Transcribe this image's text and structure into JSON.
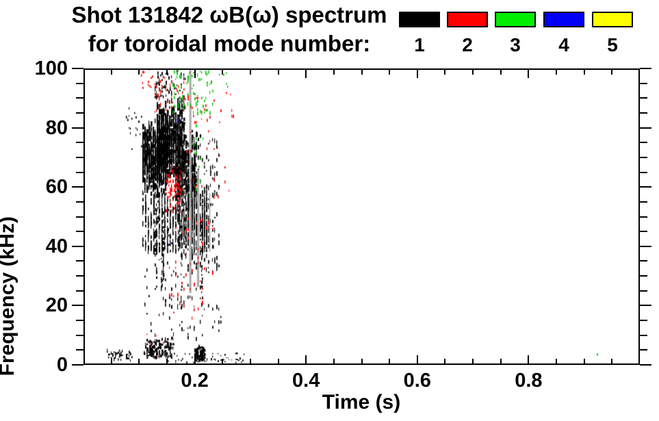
{
  "title": {
    "line1": "Shot 131842 ωB(ω) spectrum",
    "line2": "for toroidal mode number:"
  },
  "legend": {
    "items": [
      {
        "label": "1",
        "color": "#000000"
      },
      {
        "label": "2",
        "color": "#ff0000"
      },
      {
        "label": "3",
        "color": "#00ee00"
      },
      {
        "label": "4",
        "color": "#0000f5"
      },
      {
        "label": "5",
        "color": "#ffff00"
      }
    ]
  },
  "chart_data": {
    "type": "scatter",
    "title": "Shot 131842 ωB(ω) spectrum for toroidal mode number: 1 2 3 4 5",
    "xlabel": "Time (s)",
    "ylabel": "Frequency (kHz)",
    "xlim": [
      0,
      1.0
    ],
    "ylim": [
      0,
      100
    ],
    "x_major_ticks": [
      0.2,
      0.4,
      0.6,
      0.8
    ],
    "x_tick_labels": [
      "0.2",
      "0.4",
      "0.6",
      "0.8"
    ],
    "x_minor_step": 0.05,
    "y_major_ticks": [
      0,
      20,
      40,
      60,
      80,
      100
    ],
    "y_tick_labels": [
      "0",
      "20",
      "40",
      "60",
      "80",
      "100"
    ],
    "y_minor_step": 5,
    "grid": false,
    "legend_position": "top-right-above-plot",
    "series": [
      {
        "mode": 1,
        "label": "1",
        "color": "#000000",
        "clusters": [
          {
            "n": 620,
            "t": [
              0.102,
              0.148
            ],
            "f": [
              56,
              84
            ],
            "prof": "blob",
            "w": [
              1,
              3
            ],
            "h": [
              3,
              9
            ],
            "q": 3
          },
          {
            "n": 780,
            "t": [
              0.128,
              0.178
            ],
            "f": [
              62,
              91
            ],
            "prof": "blob",
            "w": [
              1,
              3
            ],
            "h": [
              3,
              9
            ],
            "q": 3
          },
          {
            "n": 460,
            "t": [
              0.162,
              0.2
            ],
            "f": [
              50,
              80
            ],
            "prof": "blob",
            "w": [
              1,
              3
            ],
            "h": [
              3,
              8
            ],
            "q": 3
          },
          {
            "n": 420,
            "t": [
              0.168,
              0.222
            ],
            "f": [
              33,
              62
            ],
            "prof": "blob",
            "w": [
              1,
              2
            ],
            "h": [
              3,
              10
            ],
            "q": 3
          },
          {
            "n": 260,
            "t": [
              0.104,
              0.168
            ],
            "f": [
              38,
              58
            ],
            "prof": "uniform",
            "w": [
              1,
              2
            ],
            "h": [
              3,
              10
            ],
            "q": 4
          },
          {
            "n": 110,
            "t": [
              0.108,
              0.248
            ],
            "f": [
              8,
              36
            ],
            "prof": "uniform",
            "w": [
              1,
              2
            ],
            "h": [
              2,
              6
            ],
            "q": 3
          },
          {
            "n": 70,
            "t": [
              0.122,
              0.182
            ],
            "f": [
              90,
              100
            ],
            "prof": "uniform",
            "w": [
              1,
              2
            ],
            "h": [
              2,
              5
            ],
            "q": 2
          },
          {
            "n": 20,
            "t": [
              0.072,
              0.102
            ],
            "f": [
              70,
              88
            ],
            "prof": "uniform",
            "w": [
              1,
              2
            ],
            "h": [
              2,
              4
            ],
            "q": 2
          },
          {
            "n": 110,
            "t": [
              0.198,
              0.242
            ],
            "f": [
              30,
              78
            ],
            "prof": "uniform",
            "w": [
              1,
              2
            ],
            "h": [
              2,
              7
            ],
            "q": 3
          },
          {
            "type": "vstreaks",
            "n": 16,
            "t": [
              0.107,
              0.232
            ],
            "ftop": [
              44,
              66
            ],
            "flen": [
              8,
              30
            ]
          },
          {
            "n": 55,
            "t": [
              0.038,
              0.085
            ],
            "f": [
              0.5,
              5
            ],
            "prof": "blob",
            "w": [
              1,
              2
            ],
            "h": [
              2,
              4
            ],
            "q": 2
          },
          {
            "n": 150,
            "t": [
              0.106,
              0.158
            ],
            "f": [
              0.5,
              9
            ],
            "prof": "blob",
            "w": [
              1,
              3
            ],
            "h": [
              2,
              5
            ],
            "q": 2
          },
          {
            "n": 55,
            "t": [
              0.16,
              0.29
            ],
            "f": [
              0.3,
              3.5
            ],
            "prof": "uniform",
            "w": [
              1,
              2
            ],
            "h": [
              1,
              3
            ],
            "q": 2
          },
          {
            "n": 90,
            "t": [
              0.198,
              0.215
            ],
            "f": [
              0.5,
              6
            ],
            "prof": "blob",
            "w": [
              1,
              3
            ],
            "h": [
              2,
              5
            ],
            "q": 2
          }
        ]
      },
      {
        "mode": 2,
        "label": "2",
        "color": "#ff0000",
        "clusters": [
          {
            "n": 70,
            "t": [
              0.144,
              0.174
            ],
            "f": [
              50,
              68
            ],
            "prof": "blob",
            "w": [
              1,
              2
            ],
            "h": [
              2,
              6
            ],
            "q": 2
          },
          {
            "n": 45,
            "t": [
              0.15,
              0.232
            ],
            "f": [
              15,
              52
            ],
            "prof": "uniform",
            "w": [
              1,
              2
            ],
            "h": [
              2,
              6
            ],
            "q": 3
          },
          {
            "n": 35,
            "t": [
              0.124,
              0.182
            ],
            "f": [
              84,
              98
            ],
            "prof": "uniform",
            "w": [
              1,
              2
            ],
            "h": [
              2,
              5
            ],
            "q": 2
          },
          {
            "n": 12,
            "t": [
              0.1,
              0.124
            ],
            "f": [
              92,
              100
            ],
            "prof": "uniform",
            "w": [
              1,
              2
            ],
            "h": [
              2,
              4
            ],
            "q": 2
          },
          {
            "n": 22,
            "t": [
              0.215,
              0.268
            ],
            "f": [
              55,
              95
            ],
            "prof": "uniform",
            "w": [
              1,
              2
            ],
            "h": [
              2,
              5
            ],
            "q": 2
          },
          {
            "n": 25,
            "t": [
              0.178,
              0.215
            ],
            "f": [
              60,
              92
            ],
            "prof": "uniform",
            "w": [
              1,
              2
            ],
            "h": [
              2,
              5
            ],
            "q": 2
          },
          {
            "n": 6,
            "t": [
              0.108,
              0.148
            ],
            "f": [
              2,
              10
            ],
            "prof": "uniform",
            "w": [
              1,
              2
            ],
            "h": [
              1,
              3
            ],
            "q": 2
          }
        ]
      },
      {
        "mode": 3,
        "label": "3",
        "color": "#00c000",
        "clusters": [
          {
            "n": 80,
            "t": [
              0.158,
              0.23
            ],
            "f": [
              85,
              100
            ],
            "prof": "uniform",
            "w": [
              1,
              2
            ],
            "h": [
              2,
              6
            ],
            "q": 2
          },
          {
            "n": 14,
            "t": [
              0.185,
              0.215
            ],
            "f": [
              55,
              82
            ],
            "prof": "uniform",
            "w": [
              1,
              2
            ],
            "h": [
              2,
              5
            ],
            "q": 2
          },
          {
            "n": 5,
            "t": [
              0.24,
              0.262
            ],
            "f": [
              92,
              100
            ],
            "prof": "uniform",
            "w": [
              1,
              2
            ],
            "h": [
              2,
              4
            ],
            "q": 2
          },
          {
            "n": 1,
            "t": [
              0.922,
              0.926
            ],
            "f": [
              1.8,
              3.2
            ],
            "prof": "uniform",
            "w": [
              2,
              2
            ],
            "h": [
              3,
              3
            ],
            "q": 1
          }
        ]
      },
      {
        "mode": 4,
        "label": "4",
        "color": "#0000e0",
        "clusters": [
          {
            "n": 1,
            "t": [
              0.166,
              0.168
            ],
            "f": [
              82,
              84
            ],
            "prof": "uniform",
            "w": [
              2,
              2
            ],
            "h": [
              3,
              3
            ],
            "q": 1
          },
          {
            "n": 1,
            "t": [
              0.155,
              0.157
            ],
            "f": [
              39,
              41
            ],
            "prof": "uniform",
            "w": [
              2,
              2
            ],
            "h": [
              3,
              3
            ],
            "q": 1
          }
        ]
      },
      {
        "mode": 5,
        "label": "5",
        "color": "#ffff00",
        "clusters": []
      }
    ],
    "artifact_lines": [
      {
        "t": 0.1905,
        "f": [
          24,
          100
        ],
        "w": 3,
        "color": "#a8a8a8"
      },
      {
        "t": 0.2045,
        "f": [
          26,
          66
        ],
        "w": 3,
        "color": "#a8a8a8"
      },
      {
        "t": 0.2255,
        "f": [
          38,
          58
        ],
        "w": 2,
        "color": "#b4b4b4"
      }
    ]
  }
}
